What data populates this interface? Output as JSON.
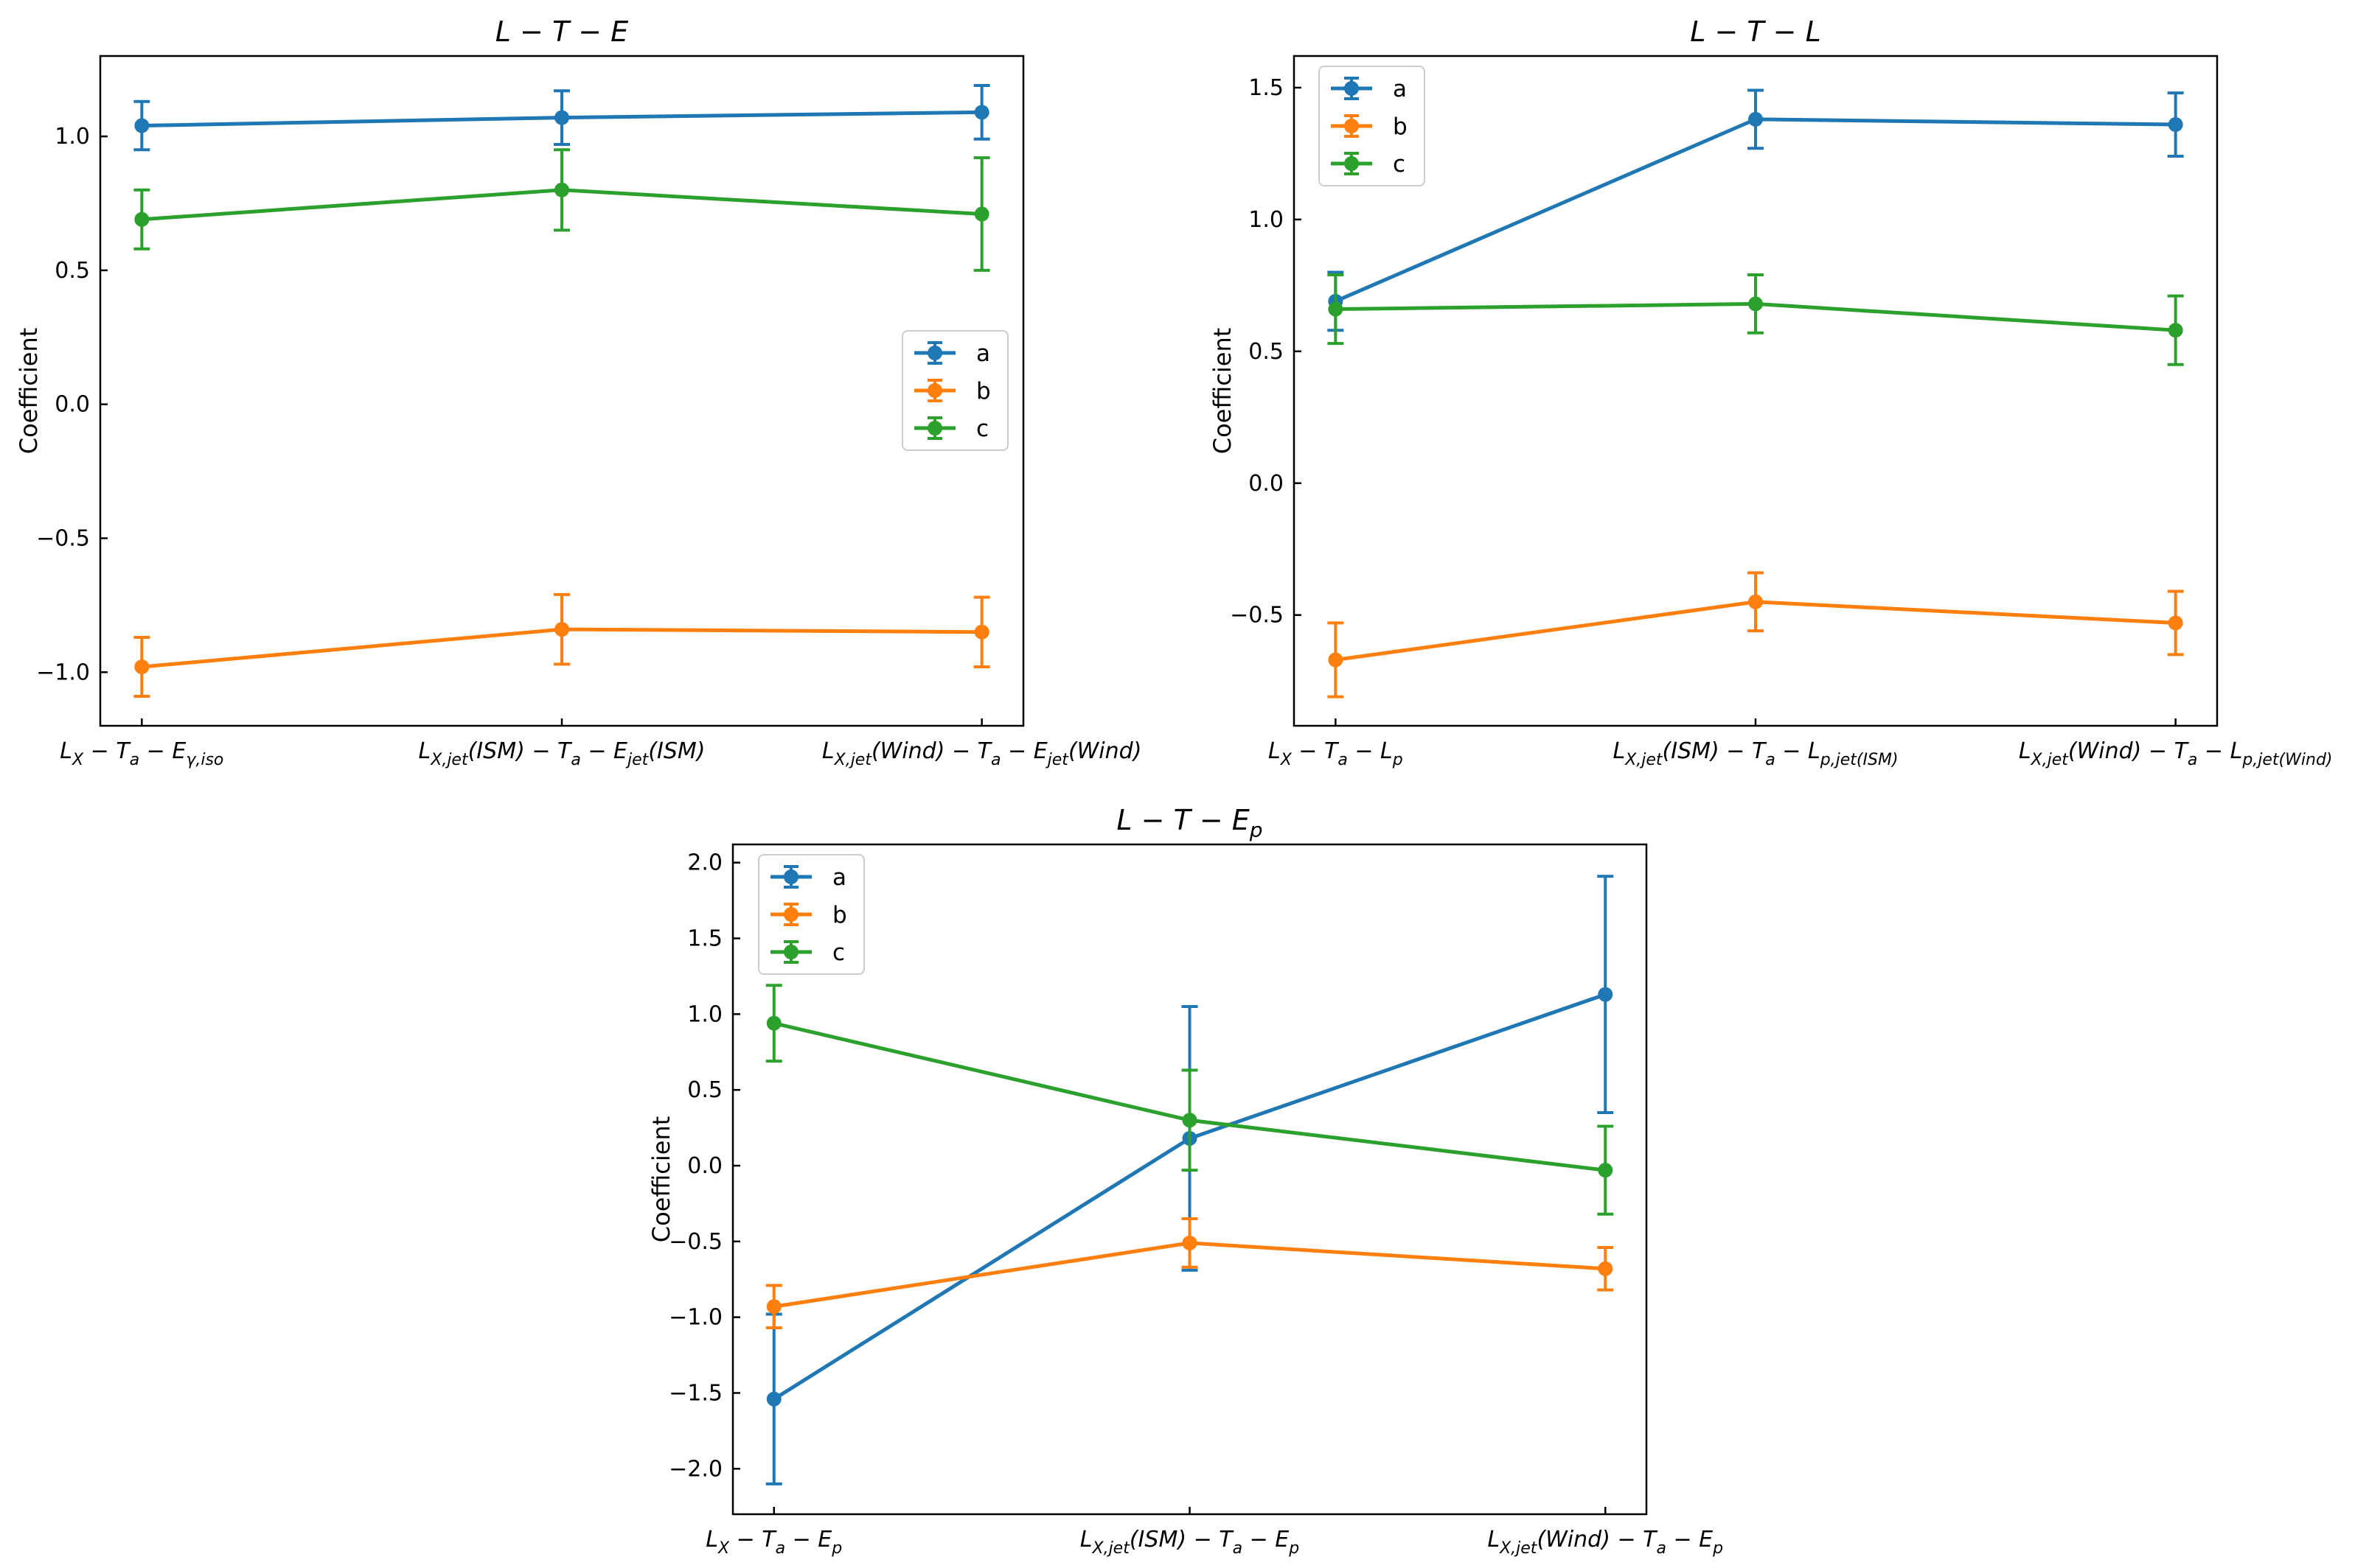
{
  "colors": {
    "a": "#1f77b4",
    "b": "#ff7f0e",
    "c": "#2ca02c"
  },
  "chart_data": [
    {
      "type": "line",
      "title": "L − T − E",
      "xlabel": "",
      "ylabel": "Coefficient",
      "categories": [
        "L_X − T_a − E_γ,iso",
        "L_X,jet(ISM) − T_a − E_jet(ISM)",
        "L_X,jet(Wind) − T_a − E_jet(Wind)"
      ],
      "ylim": [
        -1.2,
        1.3
      ],
      "yticks": [
        -1.0,
        -0.5,
        0.0,
        0.5,
        1.0
      ],
      "ytick_labels": [
        "−1.0",
        "−0.5",
        "0.0",
        "0.5",
        "1.0"
      ],
      "legend_position": "center-right",
      "series": [
        {
          "name": "a",
          "values": [
            1.04,
            1.07,
            1.09
          ],
          "errors": [
            0.09,
            0.1,
            0.1
          ]
        },
        {
          "name": "b",
          "values": [
            -0.98,
            -0.84,
            -0.85
          ],
          "errors": [
            0.11,
            0.13,
            0.13
          ]
        },
        {
          "name": "c",
          "values": [
            0.69,
            0.8,
            0.71
          ],
          "errors": [
            0.11,
            0.15,
            0.21
          ]
        }
      ]
    },
    {
      "type": "line",
      "title": "L − T − L",
      "xlabel": "",
      "ylabel": "Coefficient",
      "categories": [
        "L_X − T_a − L_p",
        "L_X,jet(ISM) − T_a − L_p,jet(ISM)",
        "L_X,jet(Wind) − T_a − L_p,jet(Wind)"
      ],
      "ylim": [
        -0.92,
        1.62
      ],
      "yticks": [
        -0.5,
        0.0,
        0.5,
        1.0,
        1.5
      ],
      "ytick_labels": [
        "−0.5",
        "0.0",
        "0.5",
        "1.0",
        "1.5"
      ],
      "legend_position": "top-left",
      "series": [
        {
          "name": "a",
          "values": [
            0.69,
            1.38,
            1.36
          ],
          "errors": [
            0.11,
            0.11,
            0.12
          ]
        },
        {
          "name": "b",
          "values": [
            -0.67,
            -0.45,
            -0.53
          ],
          "errors": [
            0.14,
            0.11,
            0.12
          ]
        },
        {
          "name": "c",
          "values": [
            0.66,
            0.68,
            0.58
          ],
          "errors": [
            0.13,
            0.11,
            0.13
          ]
        }
      ]
    },
    {
      "type": "line",
      "title": "L − T − E_p",
      "xlabel": "",
      "ylabel": "Coefficient",
      "categories": [
        "L_X − T_a − E_p",
        "L_X,jet(ISM) − T_a − E_p",
        "L_X,jet(Wind) − T_a − E_p"
      ],
      "ylim": [
        -2.3,
        2.12
      ],
      "yticks": [
        -2.0,
        -1.5,
        -1.0,
        -0.5,
        0.0,
        0.5,
        1.0,
        1.5,
        2.0
      ],
      "ytick_labels": [
        "−2.0",
        "−1.5",
        "−1.0",
        "−0.5",
        "0.0",
        "0.5",
        "1.0",
        "1.5",
        "2.0"
      ],
      "legend_position": "top-left",
      "series": [
        {
          "name": "a",
          "values": [
            -1.54,
            0.18,
            1.13
          ],
          "errors": [
            0.56,
            0.87,
            0.78
          ]
        },
        {
          "name": "b",
          "values": [
            -0.93,
            -0.51,
            -0.68
          ],
          "errors": [
            0.14,
            0.16,
            0.14
          ]
        },
        {
          "name": "c",
          "values": [
            0.94,
            0.3,
            -0.03
          ],
          "errors": [
            0.25,
            0.33,
            0.29
          ]
        }
      ]
    }
  ]
}
